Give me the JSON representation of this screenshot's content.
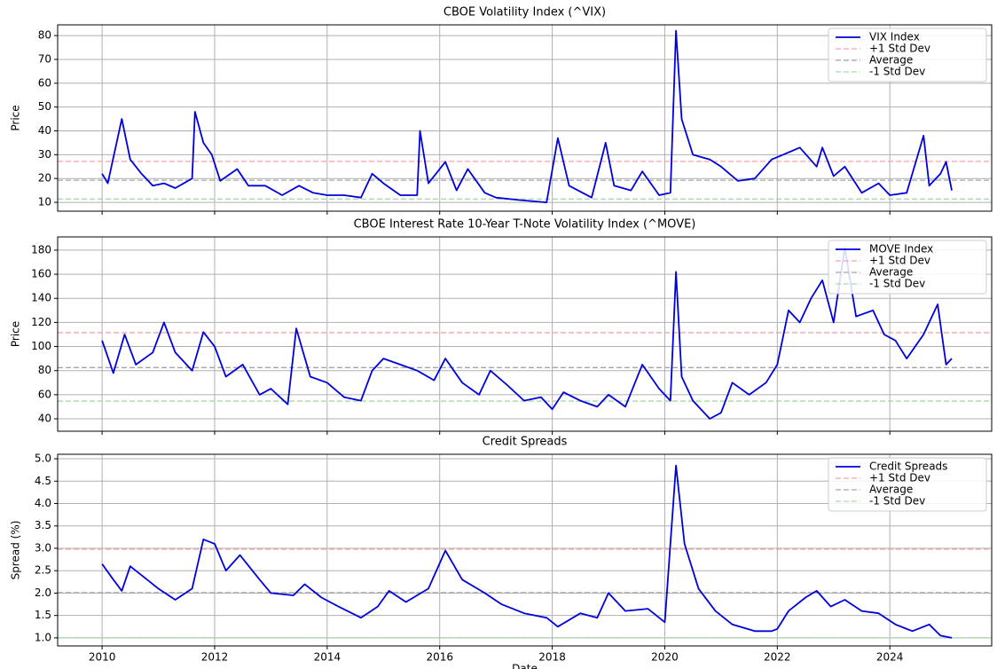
{
  "chart_data": [
    {
      "type": "line",
      "title": "CBOE Volatility Index (^VIX)",
      "ylabel": "Price",
      "x": [
        2010.0,
        2010.1,
        2010.35,
        2010.5,
        2010.7,
        2010.9,
        2011.1,
        2011.3,
        2011.6,
        2011.65,
        2011.8,
        2011.95,
        2012.1,
        2012.4,
        2012.6,
        2012.9,
        2013.2,
        2013.5,
        2013.75,
        2014.0,
        2014.3,
        2014.6,
        2014.8,
        2015.0,
        2015.3,
        2015.6,
        2015.65,
        2015.8,
        2016.1,
        2016.3,
        2016.5,
        2016.8,
        2017.0,
        2017.4,
        2017.9,
        2018.1,
        2018.3,
        2018.7,
        2018.95,
        2019.1,
        2019.4,
        2019.6,
        2019.9,
        2020.1,
        2020.2,
        2020.3,
        2020.5,
        2020.8,
        2021.0,
        2021.3,
        2021.6,
        2021.9,
        2022.1,
        2022.4,
        2022.7,
        2022.8,
        2023.0,
        2023.2,
        2023.5,
        2023.8,
        2024.0,
        2024.3,
        2024.6,
        2024.7,
        2024.9,
        2025.0,
        2025.1
      ],
      "series": [
        {
          "name": "VIX Index",
          "color": "#0000dd",
          "values": [
            22,
            18,
            45,
            28,
            22,
            17,
            18,
            16,
            20,
            48,
            35,
            30,
            19,
            24,
            17,
            17,
            13,
            17,
            14,
            13,
            13,
            12,
            22,
            18,
            13,
            13,
            40,
            18,
            27,
            15,
            24,
            14,
            12,
            11,
            10,
            37,
            17,
            12,
            35,
            17,
            15,
            23,
            13,
            14,
            82,
            45,
            30,
            28,
            25,
            19,
            20,
            28,
            30,
            33,
            25,
            33,
            21,
            25,
            14,
            18,
            13,
            14,
            38,
            17,
            22,
            27,
            15
          ]
        }
      ],
      "reference_lines": [
        {
          "name": "+1 Std Dev",
          "value": 27.2,
          "color": "#f2a5a5"
        },
        {
          "name": "Average",
          "value": 19.3,
          "color": "#a6a6a6"
        },
        {
          "name": "-1 Std Dev",
          "value": 11.4,
          "color": "#a6d9a6"
        }
      ],
      "xlim": [
        2009.21,
        2025.81
      ],
      "xticks": [
        2010,
        2012,
        2014,
        2016,
        2018,
        2020,
        2022,
        2024
      ],
      "xtick_labels": false,
      "ylim": [
        6.3,
        84.5
      ],
      "yticks": [
        10,
        20,
        30,
        40,
        50,
        60,
        70,
        80
      ],
      "grid": true,
      "legend": "upper right"
    },
    {
      "type": "line",
      "title": "CBOE Interest Rate 10-Year T-Note Volatility Index (^MOVE)",
      "ylabel": "Price",
      "x": [
        2010.0,
        2010.2,
        2010.4,
        2010.6,
        2010.9,
        2011.1,
        2011.3,
        2011.6,
        2011.8,
        2012.0,
        2012.2,
        2012.5,
        2012.8,
        2013.0,
        2013.3,
        2013.45,
        2013.7,
        2014.0,
        2014.3,
        2014.6,
        2014.8,
        2015.0,
        2015.3,
        2015.6,
        2015.9,
        2016.1,
        2016.4,
        2016.7,
        2016.9,
        2017.2,
        2017.5,
        2017.8,
        2018.0,
        2018.2,
        2018.5,
        2018.8,
        2019.0,
        2019.3,
        2019.6,
        2019.9,
        2020.1,
        2020.2,
        2020.3,
        2020.5,
        2020.8,
        2021.0,
        2021.2,
        2021.5,
        2021.8,
        2022.0,
        2022.2,
        2022.4,
        2022.6,
        2022.8,
        2023.0,
        2023.2,
        2023.4,
        2023.7,
        2023.9,
        2024.1,
        2024.3,
        2024.6,
        2024.85,
        2025.0,
        2025.1
      ],
      "series": [
        {
          "name": "MOVE Index",
          "color": "#0000dd",
          "values": [
            105,
            78,
            110,
            85,
            95,
            120,
            95,
            80,
            112,
            100,
            75,
            85,
            60,
            65,
            52,
            115,
            75,
            70,
            58,
            55,
            80,
            90,
            85,
            80,
            72,
            90,
            70,
            60,
            80,
            68,
            55,
            58,
            48,
            62,
            55,
            50,
            60,
            50,
            85,
            65,
            55,
            162,
            75,
            55,
            40,
            45,
            70,
            60,
            70,
            85,
            130,
            120,
            140,
            155,
            120,
            182,
            125,
            130,
            110,
            105,
            90,
            110,
            135,
            85,
            90
          ]
        }
      ],
      "reference_lines": [
        {
          "name": "+1 Std Dev",
          "value": 111.5,
          "color": "#f2a5a5"
        },
        {
          "name": "Average",
          "value": 82.5,
          "color": "#a6a6a6"
        },
        {
          "name": "-1 Std Dev",
          "value": 54.7,
          "color": "#a6d9a6"
        }
      ],
      "xlim": [
        2009.21,
        2025.81
      ],
      "xticks": [
        2010,
        2012,
        2014,
        2016,
        2018,
        2020,
        2022,
        2024
      ],
      "xtick_labels": false,
      "ylim": [
        29.7,
        191
      ],
      "yticks": [
        40,
        60,
        80,
        100,
        120,
        140,
        160,
        180
      ],
      "grid": true,
      "legend": "upper right"
    },
    {
      "type": "line",
      "title": "Credit Spreads",
      "ylabel": "Spread (%)",
      "xlabel": "Date",
      "x": [
        2010.0,
        2010.2,
        2010.35,
        2010.5,
        2010.8,
        2011.0,
        2011.3,
        2011.6,
        2011.8,
        2012.0,
        2012.2,
        2012.45,
        2012.8,
        2013.0,
        2013.4,
        2013.6,
        2013.9,
        2014.2,
        2014.6,
        2014.9,
        2015.1,
        2015.4,
        2015.8,
        2016.1,
        2016.4,
        2016.8,
        2017.1,
        2017.5,
        2017.9,
        2018.1,
        2018.5,
        2018.8,
        2019.0,
        2019.3,
        2019.7,
        2020.0,
        2020.2,
        2020.35,
        2020.6,
        2020.9,
        2021.2,
        2021.6,
        2021.9,
        2022.0,
        2022.2,
        2022.5,
        2022.7,
        2022.95,
        2023.2,
        2023.5,
        2023.8,
        2024.1,
        2024.4,
        2024.7,
        2024.9,
        2025.1
      ],
      "series": [
        {
          "name": "Credit Spreads",
          "color": "#0000dd",
          "values": [
            2.65,
            2.3,
            2.05,
            2.6,
            2.3,
            2.1,
            1.85,
            2.1,
            3.2,
            3.1,
            2.5,
            2.85,
            2.3,
            2.0,
            1.95,
            2.2,
            1.9,
            1.7,
            1.45,
            1.7,
            2.05,
            1.8,
            2.1,
            2.95,
            2.3,
            2.0,
            1.75,
            1.55,
            1.45,
            1.25,
            1.55,
            1.45,
            2.0,
            1.6,
            1.65,
            1.35,
            4.85,
            3.1,
            2.1,
            1.6,
            1.3,
            1.15,
            1.15,
            1.2,
            1.6,
            1.9,
            2.05,
            1.7,
            1.85,
            1.6,
            1.55,
            1.3,
            1.15,
            1.3,
            1.05,
            1.0
          ]
        }
      ],
      "reference_lines": [
        {
          "name": "+1 Std Dev",
          "value": 2.98,
          "color": "#f2a5a5"
        },
        {
          "name": "Average",
          "value": 2.01,
          "color": "#a6a6a6"
        },
        {
          "name": "-1 Std Dev",
          "value": 1.0,
          "color": "#a6d9a6"
        }
      ],
      "xlim": [
        2009.21,
        2025.81
      ],
      "xticks": [
        2010,
        2012,
        2014,
        2016,
        2018,
        2020,
        2022,
        2024
      ],
      "xtick_labels": true,
      "ylim": [
        0.82,
        5.1
      ],
      "yticks": [
        {
          "value": 1,
          "label": "1.0"
        },
        1.5,
        {
          "value": 2,
          "label": "2.0"
        },
        2.5,
        {
          "value": 3,
          "label": "3.0"
        },
        3.5,
        {
          "value": 4,
          "label": "4.0"
        },
        4.5,
        {
          "value": 5,
          "label": "5.0"
        }
      ],
      "grid": true,
      "legend": "upper right"
    }
  ]
}
